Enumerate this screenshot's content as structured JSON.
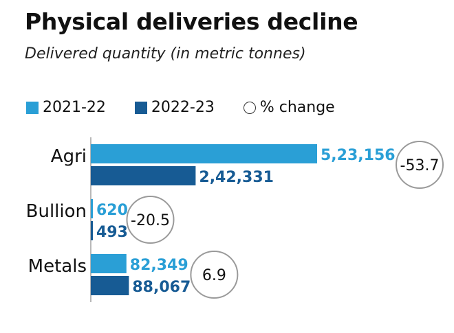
{
  "title": "Physical deliveries decline",
  "subtitle": "Delivered quantity (in metric tonnes)",
  "legend": {
    "series1": "2021-22",
    "series2": "2022-23",
    "change": "% change"
  },
  "colors": {
    "series1": "#2a9fd6",
    "series2": "#175b94",
    "circle": "#9a9a9a"
  },
  "chart_data": {
    "type": "bar",
    "orientation": "horizontal",
    "categories": [
      "Agri",
      "Bullion",
      "Metals"
    ],
    "series": [
      {
        "name": "2021-22",
        "values": [
          523156,
          620,
          82349
        ],
        "labels": [
          "5,23,156",
          "620",
          "82,349"
        ]
      },
      {
        "name": "2022-23",
        "values": [
          242331,
          493,
          88067
        ],
        "labels": [
          "2,42,331",
          "493",
          "88,067"
        ]
      }
    ],
    "pct_change": [
      -53.7,
      -20.5,
      6.9
    ],
    "pct_change_labels": [
      "-53.7",
      "-20.5",
      "6.9"
    ],
    "title": "Physical deliveries decline",
    "subtitle": "Delivered quantity (in metric tonnes)",
    "xlabel": "",
    "ylabel": "",
    "grid": false,
    "legend_position": "top-left"
  }
}
